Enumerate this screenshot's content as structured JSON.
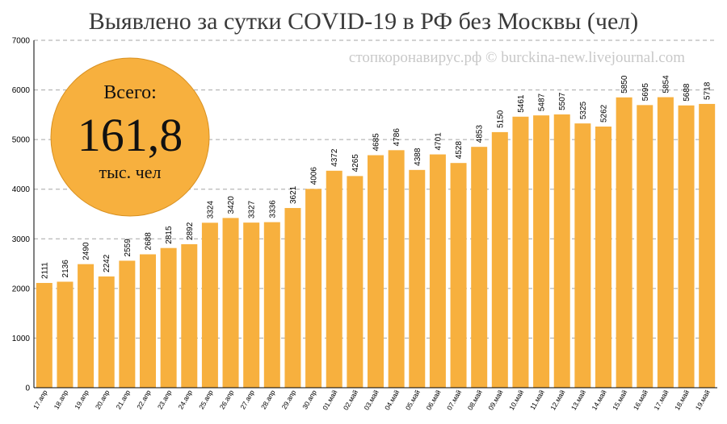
{
  "title": "Выявлено за сутки COVID-19 в РФ без Москвы (чел)",
  "watermark": "стопкоронавирус.рф © burckina-new.livejournal.com",
  "badge": {
    "top": "Всего:",
    "value": "161,8",
    "bottom": "тыс. чел"
  },
  "colors": {
    "bar": "#f7b03e",
    "badge": "#f7b03e",
    "grid": "#a6a6a6",
    "axis": "#000000"
  },
  "chart_data": {
    "type": "bar",
    "title": "Выявлено за сутки COVID-19 в РФ без Москвы (чел)",
    "xlabel": "",
    "ylabel": "",
    "ylim": [
      0,
      7000
    ],
    "yticks": [
      0,
      1000,
      2000,
      3000,
      4000,
      5000,
      6000,
      7000
    ],
    "grid": true,
    "categories": [
      "17.апр",
      "18.апр",
      "19.апр",
      "20.апр",
      "21.апр",
      "22.апр",
      "23.апр",
      "24.апр",
      "25.апр",
      "26.апр",
      "27.апр",
      "28.апр",
      "29.апр",
      "30.апр",
      "01.май",
      "02.май",
      "03.май",
      "04.май",
      "05.май",
      "06.май",
      "07.май",
      "08.май",
      "09.май",
      "10.май",
      "11.май",
      "12.май",
      "13.май",
      "14.май",
      "15.май",
      "16.май",
      "17.май",
      "18.май",
      "19.май"
    ],
    "values": [
      2111,
      2136,
      2490,
      2242,
      2559,
      2688,
      2815,
      2892,
      3324,
      3420,
      3327,
      3336,
      3621,
      4006,
      4372,
      4265,
      4685,
      4786,
      4388,
      4701,
      4528,
      4853,
      5150,
      5461,
      5487,
      5507,
      5325,
      5262,
      5850,
      5695,
      5854,
      5688,
      5718
    ]
  }
}
